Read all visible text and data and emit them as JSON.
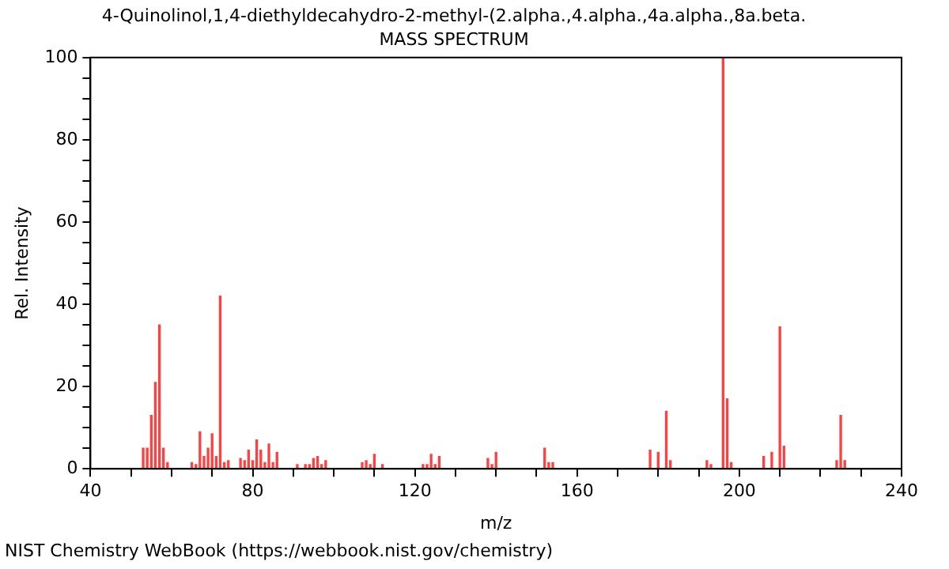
{
  "chart_data": {
    "type": "bar",
    "title": "4-Quinolinol,1,4-diethyldecahydro-2-methyl-(2.alpha.,4.alpha.,4a.alpha.,8a.beta.",
    "subtitle": "MASS SPECTRUM",
    "xlabel": "m/z",
    "ylabel": "Rel. Intensity",
    "annotations": [
      "NIST Chemistry WebBook (https://webbook.nist.gov/chemistry)"
    ],
    "x": [
      53,
      54,
      55,
      56,
      57,
      58,
      59,
      65,
      66,
      67,
      68,
      69,
      70,
      71,
      72,
      73,
      74,
      77,
      78,
      79,
      80,
      81,
      82,
      83,
      84,
      85,
      86,
      91,
      93,
      94,
      95,
      96,
      97,
      98,
      107,
      108,
      109,
      110,
      112,
      122,
      123,
      124,
      125,
      126,
      138,
      139,
      140,
      152,
      153,
      154,
      178,
      180,
      182,
      183,
      192,
      193,
      196,
      197,
      198,
      206,
      208,
      210,
      211,
      224,
      225,
      226
    ],
    "values": [
      5,
      5,
      13,
      21,
      35,
      5,
      1.5,
      1.5,
      1,
      9,
      3,
      5,
      8.5,
      3,
      42,
      1.5,
      2,
      2.5,
      2,
      4.5,
      2,
      7,
      4.5,
      1.5,
      6,
      1.5,
      4,
      1,
      1,
      1,
      2.5,
      3,
      1,
      2,
      1.5,
      2,
      1,
      3.5,
      1,
      1,
      1,
      3.5,
      1,
      3,
      2.5,
      1,
      4,
      5,
      1.5,
      1.5,
      4.5,
      4,
      14,
      2,
      2,
      1,
      100,
      17,
      1.5,
      3,
      4,
      34.5,
      5.5,
      2,
      13,
      2
    ],
    "color": "#ff4040",
    "xlim": [
      40,
      240
    ],
    "xticks": [
      40,
      {
        "value": 50,
        "label": null
      },
      {
        "value": 60,
        "label": null
      },
      {
        "value": 70,
        "label": null
      },
      80,
      {
        "value": 90,
        "label": null
      },
      {
        "value": 100,
        "label": null
      },
      {
        "value": 110,
        "label": null
      },
      120,
      {
        "value": 130,
        "label": null
      },
      {
        "value": 140,
        "label": null
      },
      {
        "value": 150,
        "label": null
      },
      160,
      {
        "value": 170,
        "label": null
      },
      {
        "value": 180,
        "label": null
      },
      {
        "value": 190,
        "label": null
      },
      200,
      {
        "value": 210,
        "label": null
      },
      {
        "value": 220,
        "label": null
      },
      {
        "value": 230,
        "label": null
      },
      240
    ],
    "ylim": [
      0,
      100
    ],
    "yticks": [
      0,
      {
        "value": 5,
        "label": null
      },
      {
        "value": 10,
        "label": null
      },
      {
        "value": 15,
        "label": null
      },
      20,
      {
        "value": 25,
        "label": null
      },
      {
        "value": 30,
        "label": null
      },
      {
        "value": 35,
        "label": null
      },
      40,
      {
        "value": 45,
        "label": null
      },
      {
        "value": 50,
        "label": null
      },
      {
        "value": 55,
        "label": null
      },
      60,
      {
        "value": 65,
        "label": null
      },
      {
        "value": 70,
        "label": null
      },
      {
        "value": 75,
        "label": null
      },
      80,
      {
        "value": 85,
        "label": null
      },
      {
        "value": 90,
        "label": null
      },
      {
        "value": 95,
        "label": null
      },
      100
    ],
    "grid": false,
    "legend": false
  }
}
